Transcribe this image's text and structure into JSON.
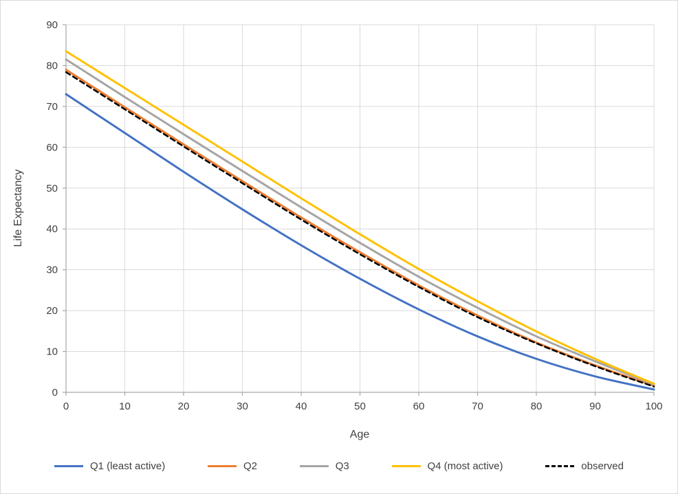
{
  "chart_data": {
    "type": "line",
    "title": "",
    "xlabel": "Age",
    "ylabel": "Life Expectancy",
    "xlim": [
      0,
      100
    ],
    "ylim": [
      0,
      90
    ],
    "x_ticks": [
      0,
      10,
      20,
      30,
      40,
      50,
      60,
      70,
      80,
      90,
      100
    ],
    "y_ticks": [
      0,
      10,
      20,
      30,
      40,
      50,
      60,
      70,
      80,
      90
    ],
    "grid": true,
    "legend_position": "bottom",
    "grid_color": "#d9d9d9",
    "axis_color": "#a6a6a6",
    "text_color": "#404040",
    "x": [
      0,
      10,
      20,
      30,
      40,
      50,
      60,
      70,
      80,
      90,
      100
    ],
    "series": [
      {
        "name": "Q1 (least active)",
        "color": "#4472c4",
        "dash": "solid",
        "values": [
          73,
          63.5,
          54,
          44.8,
          36,
          27.8,
          20.3,
          13.7,
          8.2,
          3.9,
          0.7
        ]
      },
      {
        "name": "Q2",
        "color": "#ed7d31",
        "dash": "solid",
        "values": [
          79,
          69.8,
          60.7,
          51.7,
          42.8,
          34.3,
          26.2,
          18.8,
          12.2,
          6.6,
          1.6
        ]
      },
      {
        "name": "Q3",
        "color": "#a5a5a5",
        "dash": "solid",
        "values": [
          81.5,
          72.3,
          63.2,
          54.2,
          45.3,
          36.6,
          28.3,
          20.7,
          13.7,
          7.6,
          1.9
        ]
      },
      {
        "name": "Q4 (most active)",
        "color": "#ffc000",
        "dash": "solid",
        "values": [
          83.5,
          74.5,
          65.5,
          56.5,
          47.5,
          38.7,
          30.2,
          22.3,
          14.9,
          8.2,
          2.1
        ]
      },
      {
        "name": "observed",
        "color": "#000000",
        "dash": "dashed",
        "values": [
          78.4,
          69.3,
          60.2,
          51.2,
          42.3,
          33.8,
          25.8,
          18.4,
          12.0,
          6.4,
          1.4
        ]
      }
    ]
  }
}
